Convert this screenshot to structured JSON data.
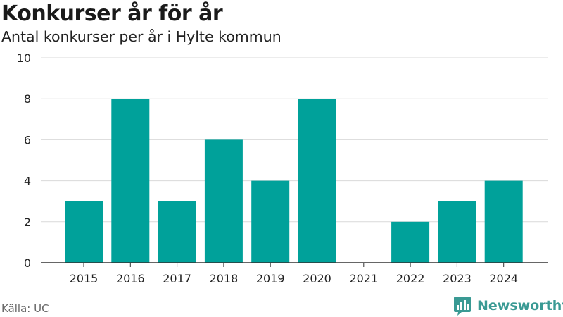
{
  "header": {
    "title": "Konkurser år för år",
    "subtitle": "Antal konkurser per år i Hylte kommun"
  },
  "footer": {
    "source": "Källa: UC",
    "brand": "Newsworthy"
  },
  "colors": {
    "bar": "#00a19a",
    "grid": "#d9d9d9",
    "axis": "#333333",
    "brand": "#3a9a94"
  },
  "chart_data": {
    "type": "bar",
    "categories": [
      "2015",
      "2016",
      "2017",
      "2018",
      "2019",
      "2020",
      "2021",
      "2022",
      "2023",
      "2024"
    ],
    "values": [
      3,
      8,
      3,
      6,
      4,
      8,
      0,
      2,
      3,
      4
    ],
    "title": "Konkurser år för år",
    "subtitle": "Antal konkurser per år i Hylte kommun",
    "xlabel": "",
    "ylabel": "",
    "ylim": [
      0,
      10
    ],
    "yticks": [
      0,
      2,
      4,
      6,
      8,
      10
    ],
    "grid": true,
    "legend": "none"
  }
}
